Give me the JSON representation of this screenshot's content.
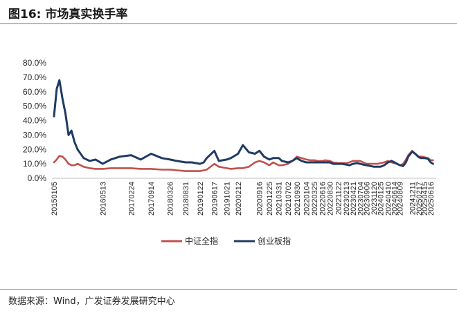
{
  "header": {
    "title": "图16:  市场真实换手率"
  },
  "source": "数据来源：Wind，广发证券发展研究中心",
  "colors": {
    "series_a": "#C0504D",
    "series_b": "#1F3B63"
  },
  "chart_data": {
    "type": "line",
    "title": "",
    "xlabel": "",
    "ylabel": "",
    "ylim": [
      0,
      80
    ],
    "y_ticks": [
      "0.0%",
      "10.0%",
      "20.0%",
      "30.0%",
      "40.0%",
      "50.0%",
      "60.0%",
      "70.0%",
      "80.0%"
    ],
    "grid": false,
    "legend": "bottom",
    "x_tick_labels": [
      "20150105",
      "20160513",
      "20170224",
      "20170914",
      "20180326",
      "20180831",
      "20190122",
      "20190617",
      "20191021",
      "20200212",
      "20200916",
      "20201225",
      "20210331",
      "20210702",
      "20210930",
      "20220104",
      "20220325",
      "20220616",
      "20220830",
      "20221122",
      "20230213",
      "20230421",
      "20230704",
      "20230906",
      "20231120",
      "20240125",
      "20240410",
      "20240614",
      "20240809",
      "20241211",
      "20250217",
      "20250415",
      "20250616"
    ],
    "x": [
      "20150105",
      "20150201",
      "20150301",
      "20150401",
      "20150501",
      "20150601",
      "20150701",
      "20150801",
      "20150901",
      "20151101",
      "20160101",
      "20160301",
      "20160513",
      "20160801",
      "20161101",
      "20170224",
      "20170601",
      "20170914",
      "20180101",
      "20180326",
      "20180601",
      "20180831",
      "20181101",
      "20190122",
      "20190301",
      "20190401",
      "20190617",
      "20190801",
      "20191021",
      "20191201",
      "20200212",
      "20200401",
      "20200601",
      "20200801",
      "20200916",
      "20201101",
      "20201225",
      "20210201",
      "20210331",
      "20210501",
      "20210702",
      "20210815",
      "20210930",
      "20211115",
      "20220104",
      "20220210",
      "20220325",
      "20220501",
      "20220616",
      "20220715",
      "20220830",
      "20221001",
      "20221122",
      "20230101",
      "20230213",
      "20230315",
      "20230421",
      "20230601",
      "20230704",
      "20230801",
      "20230906",
      "20231015",
      "20231120",
      "20231225",
      "20240125",
      "20240301",
      "20240410",
      "20240515",
      "20240614",
      "20240710",
      "20240809",
      "20240910",
      "20241008",
      "20241101",
      "20241211",
      "20250110",
      "20250217",
      "20250315",
      "20250415",
      "20250520",
      "20250616",
      "20250710"
    ],
    "series": [
      {
        "name": "中证全指",
        "values": [
          11,
          13,
          15.5,
          15,
          13,
          10,
          9,
          9,
          10,
          8,
          7,
          6.5,
          6.5,
          7,
          7,
          7,
          6.5,
          6.5,
          6,
          6,
          5.5,
          5,
          5,
          5,
          5.5,
          6,
          10,
          8,
          7,
          6.5,
          7,
          7,
          8,
          11,
          12,
          11,
          9,
          11,
          9,
          9,
          10,
          12,
          15,
          14,
          13,
          12.5,
          12.5,
          12,
          12,
          12.5,
          12,
          11,
          10.5,
          10.5,
          10.5,
          11,
          12,
          12,
          12,
          11,
          10,
          10,
          10,
          10,
          10.5,
          11,
          12,
          11,
          10.5,
          10,
          9,
          10,
          13,
          16,
          19,
          17,
          15,
          15,
          14.5,
          14,
          12.5,
          12.5
        ]
      },
      {
        "name": "创业板指",
        "values": [
          43,
          62,
          68,
          55,
          45,
          30,
          33,
          25,
          20,
          14,
          12,
          13,
          10,
          13,
          15,
          16,
          13,
          17,
          14,
          13,
          12,
          11,
          11,
          10,
          11,
          14,
          19,
          12,
          13,
          14,
          17,
          23,
          18,
          17,
          19,
          15,
          13,
          14,
          14,
          12,
          11,
          12,
          14,
          12,
          11,
          11,
          11,
          11,
          11,
          11,
          11,
          10,
          10,
          10,
          9.5,
          9,
          10,
          10.5,
          10,
          9.5,
          9,
          8.5,
          8,
          8,
          8,
          9,
          11,
          12,
          11,
          10,
          9,
          8.5,
          11,
          15,
          18.5,
          17,
          14.5,
          14,
          14,
          13.5,
          11,
          10
        ]
      }
    ]
  }
}
